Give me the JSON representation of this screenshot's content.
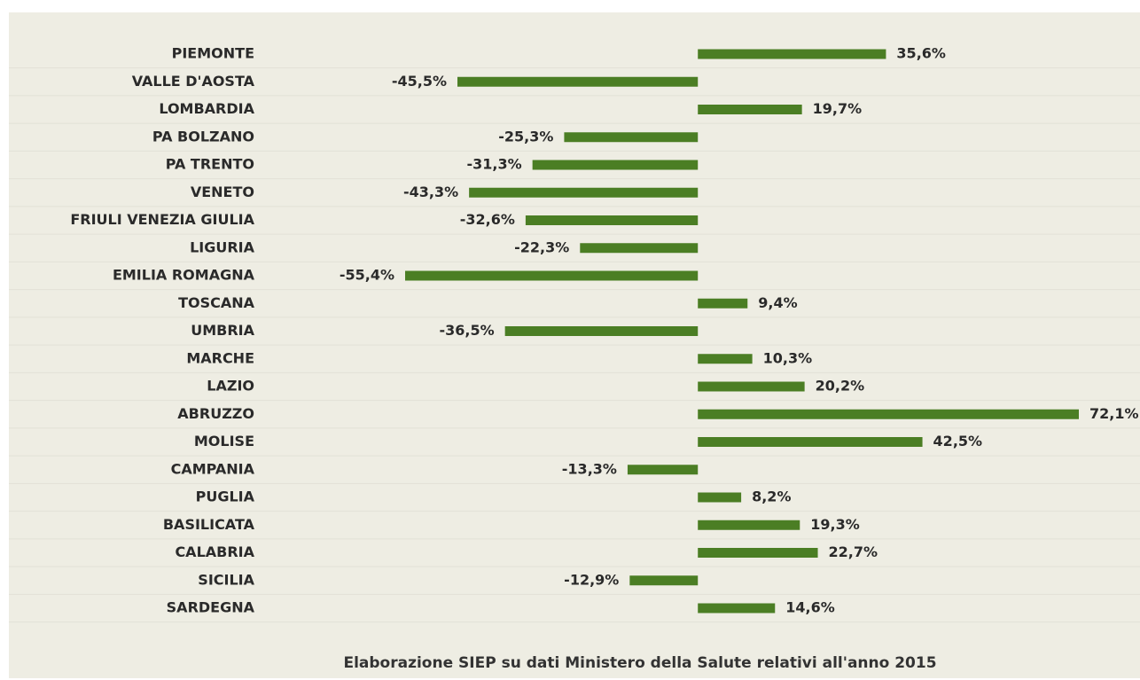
{
  "chart_data": {
    "type": "bar",
    "orientation": "horizontal",
    "color": "#4b7e24",
    "categories": [
      "PIEMONTE",
      "VALLE D'AOSTA",
      "LOMBARDIA",
      "PA BOLZANO",
      "PA TRENTO",
      "VENETO",
      "FRIULI VENEZIA GIULIA",
      "LIGURIA",
      "EMILIA ROMAGNA",
      "TOSCANA",
      "UMBRIA",
      "MARCHE",
      "LAZIO",
      "ABRUZZO",
      "MOLISE",
      "CAMPANIA",
      "PUGLIA",
      "BASILICATA",
      "CALABRIA",
      "SICILIA",
      "SARDEGNA"
    ],
    "values": [
      35.6,
      -45.5,
      19.7,
      -25.3,
      -31.3,
      -43.3,
      -32.6,
      -22.3,
      -55.4,
      9.4,
      -36.5,
      10.3,
      20.2,
      72.1,
      42.5,
      -13.3,
      8.2,
      19.3,
      22.7,
      -12.9,
      14.6
    ],
    "value_labels": [
      "35,6%",
      "-45,5%",
      "19,7%",
      "-25,3%",
      "-31,3%",
      "-43,3%",
      "-32,6%",
      "-22,3%",
      "-55,4%",
      "9,4%",
      "-36,5%",
      "10,3%",
      "20,2%",
      "72,1%",
      "42,5%",
      "-13,3%",
      "8,2%",
      "19,3%",
      "22,7%",
      "-12,9%",
      "14,6%"
    ],
    "note": "Elaborazione SIEP su dati Ministero della Salute relativi all'anno 2015"
  }
}
